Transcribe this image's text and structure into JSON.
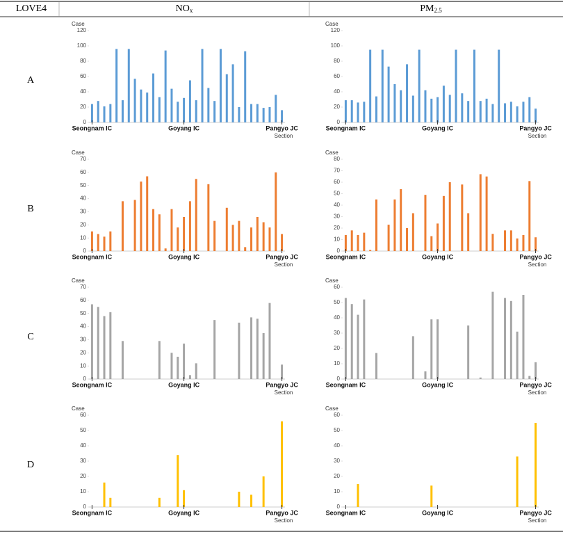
{
  "table": {
    "header": [
      {
        "main": "LOVE4"
      },
      {
        "main": "NO",
        "sub": "x"
      },
      {
        "main": "PM",
        "sub": "2.5"
      }
    ],
    "rows": [
      "A",
      "B",
      "C",
      "D"
    ]
  },
  "chart_data": [
    {
      "type": "bar",
      "ylabel": "Case",
      "xlabel": "Section",
      "color": "#5b9bd5",
      "ylim": [
        0,
        120
      ],
      "yticks": [
        0,
        20,
        40,
        60,
        80,
        100,
        120
      ],
      "categories": [
        "Seongnam IC",
        null,
        null,
        null,
        null,
        null,
        null,
        null,
        null,
        null,
        null,
        null,
        null,
        null,
        null,
        "Goyang IC",
        null,
        null,
        null,
        null,
        null,
        null,
        null,
        null,
        null,
        null,
        null,
        null,
        null,
        null,
        null,
        "Pangyo JC"
      ],
      "values": [
        24,
        28,
        21,
        24,
        96,
        29,
        96,
        57,
        43,
        39,
        64,
        33,
        94,
        44,
        27,
        32,
        55,
        29,
        96,
        45,
        28,
        96,
        63,
        76,
        20,
        93,
        24,
        24,
        19,
        20,
        36,
        16
      ]
    },
    {
      "type": "bar",
      "ylabel": "Case",
      "xlabel": "Section",
      "color": "#5b9bd5",
      "ylim": [
        0,
        120
      ],
      "yticks": [
        0,
        20,
        40,
        60,
        80,
        100,
        120
      ],
      "categories": [
        "Seongnam IC",
        null,
        null,
        null,
        null,
        null,
        null,
        null,
        null,
        null,
        null,
        null,
        null,
        null,
        null,
        "Goyang IC",
        null,
        null,
        null,
        null,
        null,
        null,
        null,
        null,
        null,
        null,
        null,
        null,
        null,
        null,
        null,
        "Pangyo JC"
      ],
      "values": [
        29,
        29,
        26,
        27,
        95,
        34,
        95,
        73,
        50,
        42,
        76,
        35,
        95,
        42,
        31,
        33,
        48,
        36,
        95,
        38,
        28,
        95,
        28,
        31,
        24,
        95,
        25,
        27,
        21,
        27,
        33,
        18
      ]
    },
    {
      "type": "bar",
      "ylabel": "Case",
      "xlabel": "Section",
      "color": "#ed7d31",
      "ylim": [
        0,
        70
      ],
      "yticks": [
        0,
        10,
        20,
        30,
        40,
        50,
        60,
        70
      ],
      "categories": [
        "Seongnam IC",
        null,
        null,
        null,
        null,
        null,
        null,
        null,
        null,
        null,
        null,
        null,
        null,
        null,
        null,
        "Goyang IC",
        null,
        null,
        null,
        null,
        null,
        null,
        null,
        null,
        null,
        null,
        null,
        null,
        null,
        null,
        null,
        "Pangyo JC"
      ],
      "values": [
        15,
        13,
        11,
        15,
        0,
        38,
        0,
        39,
        53,
        57,
        32,
        28,
        2,
        32,
        18,
        26,
        38,
        55,
        0,
        51,
        23,
        0,
        33,
        20,
        23,
        3,
        18,
        26,
        22,
        18,
        60,
        13
      ]
    },
    {
      "type": "bar",
      "ylabel": "Case",
      "xlabel": "Section",
      "color": "#ed7d31",
      "ylim": [
        0,
        80
      ],
      "yticks": [
        0,
        10,
        20,
        30,
        40,
        50,
        60,
        70,
        80
      ],
      "categories": [
        "Seongnam IC",
        null,
        null,
        null,
        null,
        null,
        null,
        null,
        null,
        null,
        null,
        null,
        null,
        null,
        null,
        "Goyang IC",
        null,
        null,
        null,
        null,
        null,
        null,
        null,
        null,
        null,
        null,
        null,
        null,
        null,
        null,
        null,
        "Pangyo JC"
      ],
      "values": [
        14,
        18,
        14,
        16,
        1,
        45,
        0,
        23,
        45,
        54,
        20,
        33,
        0,
        49,
        13,
        24,
        48,
        60,
        0,
        58,
        33,
        0,
        67,
        65,
        15,
        0,
        18,
        18,
        11,
        14,
        61,
        12
      ]
    },
    {
      "type": "bar",
      "ylabel": "Case",
      "xlabel": "Section",
      "color": "#a5a5a5",
      "ylim": [
        0,
        70
      ],
      "yticks": [
        0,
        10,
        20,
        30,
        40,
        50,
        60,
        70
      ],
      "categories": [
        "Seongnam IC",
        null,
        null,
        null,
        null,
        null,
        null,
        null,
        null,
        null,
        null,
        null,
        null,
        null,
        null,
        "Goyang IC",
        null,
        null,
        null,
        null,
        null,
        null,
        null,
        null,
        null,
        null,
        null,
        null,
        null,
        null,
        null,
        "Pangyo JC"
      ],
      "values": [
        57,
        55,
        48,
        51,
        0,
        29,
        0,
        0,
        0,
        0,
        0,
        29,
        0,
        20,
        17,
        27,
        3,
        12,
        0,
        0,
        45,
        0,
        0,
        0,
        43,
        0,
        47,
        46,
        35,
        58,
        0,
        11
      ]
    },
    {
      "type": "bar",
      "ylabel": "Case",
      "xlabel": "Section",
      "color": "#a5a5a5",
      "ylim": [
        0,
        60
      ],
      "yticks": [
        0,
        10,
        20,
        30,
        40,
        50,
        60
      ],
      "categories": [
        "Seongnam IC",
        null,
        null,
        null,
        null,
        null,
        null,
        null,
        null,
        null,
        null,
        null,
        null,
        null,
        null,
        "Goyang IC",
        null,
        null,
        null,
        null,
        null,
        null,
        null,
        null,
        null,
        null,
        null,
        null,
        null,
        null,
        null,
        "Pangyo JC"
      ],
      "values": [
        53,
        49,
        42,
        52,
        0,
        17,
        0,
        0,
        0,
        0,
        0,
        28,
        0,
        5,
        39,
        39,
        0,
        0,
        0,
        0,
        35,
        0,
        1,
        0,
        57,
        0,
        53,
        51,
        31,
        55,
        2,
        11
      ]
    },
    {
      "type": "bar",
      "ylabel": "Case",
      "xlabel": "Section",
      "color": "#ffc000",
      "ylim": [
        0,
        60
      ],
      "yticks": [
        0,
        10,
        20,
        30,
        40,
        50,
        60
      ],
      "categories": [
        "Seongnam IC",
        null,
        null,
        null,
        null,
        null,
        null,
        null,
        null,
        null,
        null,
        null,
        null,
        null,
        null,
        "Goyang IC",
        null,
        null,
        null,
        null,
        null,
        null,
        null,
        null,
        null,
        null,
        null,
        null,
        null,
        null,
        null,
        "Pangyo JC"
      ],
      "values": [
        0,
        0,
        16,
        6,
        0,
        0,
        0,
        0,
        0,
        0,
        0,
        6,
        0,
        0,
        34,
        11,
        0,
        0,
        0,
        0,
        0,
        0,
        0,
        0,
        10,
        0,
        8,
        0,
        20,
        0,
        0,
        56
      ]
    },
    {
      "type": "bar",
      "ylabel": "Case",
      "xlabel": "Section",
      "color": "#ffc000",
      "ylim": [
        0,
        60
      ],
      "yticks": [
        0,
        10,
        20,
        30,
        40,
        50,
        60
      ],
      "categories": [
        "Seongnam IC",
        null,
        null,
        null,
        null,
        null,
        null,
        null,
        null,
        null,
        null,
        null,
        null,
        null,
        null,
        "Goyang IC",
        null,
        null,
        null,
        null,
        null,
        null,
        null,
        null,
        null,
        null,
        null,
        null,
        null,
        null,
        null,
        "Pangyo JC"
      ],
      "values": [
        0,
        0,
        15,
        0,
        0,
        0,
        0,
        0,
        0,
        0,
        0,
        0,
        0,
        0,
        14,
        0,
        0,
        0,
        0,
        0,
        0,
        0,
        0,
        0,
        0,
        0,
        0,
        0,
        33,
        0,
        0,
        55
      ]
    }
  ]
}
